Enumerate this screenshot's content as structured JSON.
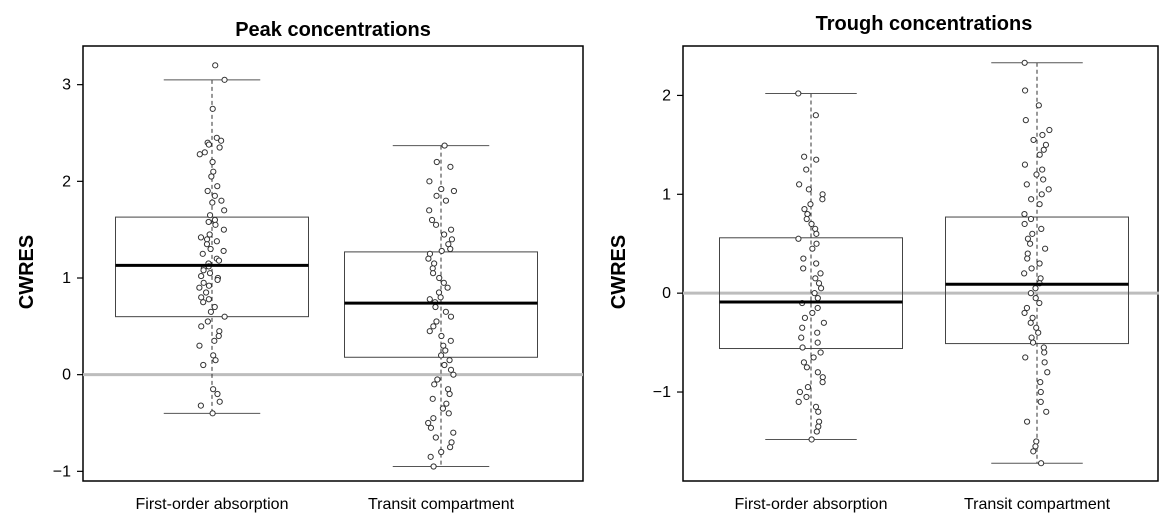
{
  "chart_data": [
    {
      "type": "boxplot",
      "title": "Peak concentrations",
      "ylabel": "CWRES",
      "xlabel": "",
      "ylim": [
        -1.1,
        3.4
      ],
      "yticks": [
        {
          "value": -1,
          "label": "−1"
        },
        {
          "value": 0,
          "label": "0"
        },
        {
          "value": 1,
          "label": "1"
        },
        {
          "value": 2,
          "label": "2"
        },
        {
          "value": 3,
          "label": "3"
        }
      ],
      "reference_line": 0,
      "categories": [
        "First-order absorption",
        "Transit compartment"
      ],
      "boxes": [
        {
          "min": -0.4,
          "q1": 0.6,
          "median": 1.13,
          "q3": 1.63,
          "max": 3.05,
          "points": [
            3.2,
            3.05,
            2.75,
            2.45,
            2.42,
            2.4,
            2.38,
            2.35,
            2.3,
            2.28,
            2.2,
            2.1,
            2.05,
            1.95,
            1.9,
            1.85,
            1.8,
            1.78,
            1.7,
            1.65,
            1.6,
            1.58,
            1.55,
            1.5,
            1.45,
            1.42,
            1.4,
            1.38,
            1.35,
            1.3,
            1.28,
            1.25,
            1.2,
            1.18,
            1.15,
            1.12,
            1.1,
            1.08,
            1.05,
            1.02,
            1.0,
            0.98,
            0.95,
            0.92,
            0.9,
            0.85,
            0.8,
            0.78,
            0.75,
            0.7,
            0.65,
            0.6,
            0.55,
            0.5,
            0.45,
            0.4,
            0.35,
            0.3,
            0.2,
            0.15,
            0.1,
            -0.15,
            -0.2,
            -0.28,
            -0.32,
            -0.4
          ]
        },
        {
          "min": -0.95,
          "q1": 0.18,
          "median": 0.74,
          "q3": 1.27,
          "max": 2.37,
          "points": [
            2.37,
            2.2,
            2.15,
            2.0,
            1.92,
            1.9,
            1.85,
            1.8,
            1.7,
            1.6,
            1.55,
            1.5,
            1.45,
            1.4,
            1.35,
            1.3,
            1.28,
            1.25,
            1.2,
            1.15,
            1.1,
            1.05,
            1.0,
            0.95,
            0.9,
            0.85,
            0.8,
            0.78,
            0.75,
            0.7,
            0.65,
            0.6,
            0.55,
            0.5,
            0.45,
            0.4,
            0.35,
            0.3,
            0.25,
            0.2,
            0.15,
            0.1,
            0.05,
            0.0,
            -0.05,
            -0.1,
            -0.15,
            -0.2,
            -0.25,
            -0.3,
            -0.35,
            -0.4,
            -0.45,
            -0.5,
            -0.55,
            -0.6,
            -0.65,
            -0.7,
            -0.75,
            -0.8,
            -0.85,
            -0.95
          ]
        }
      ]
    },
    {
      "type": "boxplot",
      "title": "Trough concentrations",
      "ylabel": "CWRES",
      "xlabel": "",
      "ylim": [
        -1.9,
        2.5
      ],
      "yticks": [
        {
          "value": -1,
          "label": "−1"
        },
        {
          "value": 0,
          "label": "0"
        },
        {
          "value": 1,
          "label": "1"
        },
        {
          "value": 2,
          "label": "2"
        }
      ],
      "reference_line": 0,
      "categories": [
        "First-order absorption",
        "Transit compartment"
      ],
      "boxes": [
        {
          "min": -1.48,
          "q1": -0.56,
          "median": -0.09,
          "q3": 0.56,
          "max": 2.02,
          "points": [
            2.02,
            1.8,
            1.38,
            1.35,
            1.25,
            1.1,
            1.05,
            1.0,
            0.95,
            0.9,
            0.85,
            0.8,
            0.75,
            0.7,
            0.65,
            0.6,
            0.55,
            0.5,
            0.45,
            0.35,
            0.3,
            0.25,
            0.2,
            0.15,
            0.1,
            0.05,
            0.0,
            -0.05,
            -0.1,
            -0.15,
            -0.2,
            -0.25,
            -0.3,
            -0.35,
            -0.4,
            -0.45,
            -0.5,
            -0.55,
            -0.6,
            -0.65,
            -0.7,
            -0.75,
            -0.8,
            -0.85,
            -0.9,
            -0.95,
            -1.0,
            -1.05,
            -1.1,
            -1.15,
            -1.2,
            -1.3,
            -1.35,
            -1.4,
            -1.48
          ]
        },
        {
          "min": -1.72,
          "q1": -0.51,
          "median": 0.09,
          "q3": 0.77,
          "max": 2.33,
          "points": [
            2.33,
            2.05,
            1.9,
            1.75,
            1.65,
            1.6,
            1.55,
            1.5,
            1.45,
            1.4,
            1.3,
            1.25,
            1.2,
            1.15,
            1.1,
            1.05,
            1.0,
            0.95,
            0.9,
            0.8,
            0.75,
            0.7,
            0.65,
            0.6,
            0.55,
            0.5,
            0.45,
            0.4,
            0.35,
            0.3,
            0.25,
            0.2,
            0.15,
            0.1,
            0.05,
            0.0,
            -0.05,
            -0.1,
            -0.15,
            -0.2,
            -0.25,
            -0.3,
            -0.35,
            -0.4,
            -0.45,
            -0.5,
            -0.55,
            -0.6,
            -0.65,
            -0.7,
            -0.8,
            -0.9,
            -1.0,
            -1.1,
            -1.2,
            -1.3,
            -1.5,
            -1.55,
            -1.6,
            -1.72
          ]
        }
      ]
    }
  ]
}
